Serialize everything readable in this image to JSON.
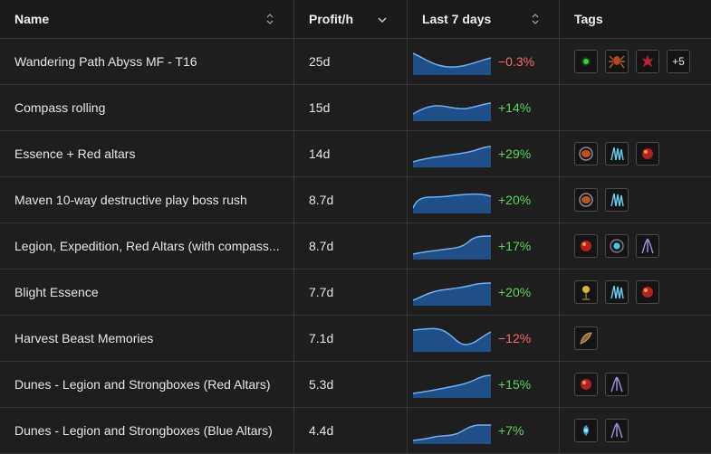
{
  "columns": {
    "name": "Name",
    "profit": "Profit/h",
    "trend": "Last 7 days",
    "tags": "Tags"
  },
  "rows": [
    {
      "name": "Wandering Path Abyss MF - T16",
      "profit": "25d",
      "pct": "−0.3%",
      "dir": "neg",
      "tags": [
        "green-orb-icon",
        "spider-icon",
        "red-hand-icon"
      ],
      "more": "+5"
    },
    {
      "name": "Compass rolling",
      "profit": "15d",
      "pct": "+14%",
      "dir": "pos",
      "tags": [],
      "more": ""
    },
    {
      "name": "Essence + Red altars",
      "profit": "14d",
      "pct": "+29%",
      "dir": "pos",
      "tags": [
        "essence-icon",
        "blue-crystals-icon",
        "red-altar-icon"
      ],
      "more": ""
    },
    {
      "name": "Maven 10-way destructive play boss rush",
      "profit": "8.7d",
      "pct": "+20%",
      "dir": "pos",
      "tags": [
        "essence-icon",
        "blue-crystals-icon"
      ],
      "more": ""
    },
    {
      "name": "Legion, Expedition, Red Altars (with compass...",
      "profit": "8.7d",
      "pct": "+17%",
      "dir": "pos",
      "tags": [
        "red-altar-icon",
        "blue-orb-icon",
        "purple-shard-icon"
      ],
      "more": ""
    },
    {
      "name": "Blight Essence",
      "profit": "7.7d",
      "pct": "+20%",
      "dir": "pos",
      "tags": [
        "blight-icon",
        "blue-crystals-icon",
        "red-altar-icon"
      ],
      "more": ""
    },
    {
      "name": "Harvest Beast Memories",
      "profit": "7.1d",
      "pct": "−12%",
      "dir": "neg",
      "tags": [
        "memory-icon"
      ],
      "more": ""
    },
    {
      "name": "Dunes - Legion and Strongboxes (Red Altars)",
      "profit": "5.3d",
      "pct": "+15%",
      "dir": "pos",
      "tags": [
        "red-altar-icon",
        "purple-shard-icon"
      ],
      "more": ""
    },
    {
      "name": "Dunes - Legion and Strongboxes (Blue Altars)",
      "profit": "4.4d",
      "pct": "+7%",
      "dir": "pos",
      "tags": [
        "blue-altar-icon",
        "purple-shard-icon"
      ],
      "more": ""
    }
  ],
  "colors": {
    "spark_fill": "#1f4f86",
    "spark_line": "#6fb0f2",
    "neg": "#f26d6d",
    "pos": "#5fd35f"
  }
}
